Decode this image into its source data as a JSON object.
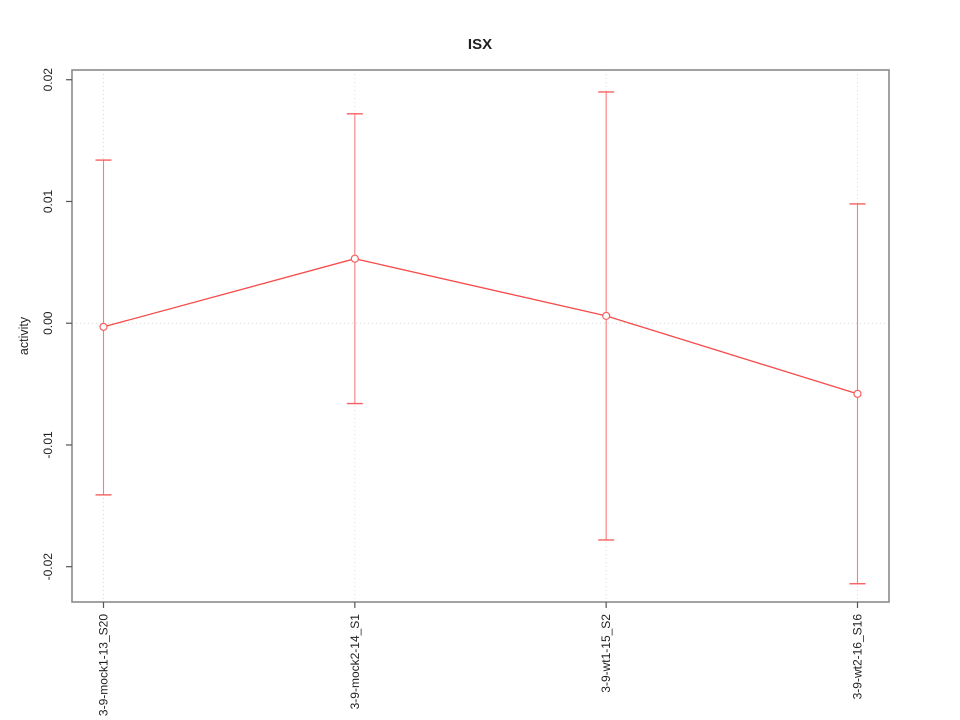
{
  "chart_data": {
    "type": "line",
    "title": "ISX",
    "ylabel": "activity",
    "categories": [
      "3-9-mock1-13_S20",
      "3-9-mock2-14_S1",
      "3-9-wt1-15_S2",
      "3-9-wt2-16_S16"
    ],
    "series": [
      {
        "name": "activity",
        "values": [
          -0.0003,
          0.0053,
          0.0006,
          -0.0058
        ],
        "error_upper": [
          0.0134,
          0.0172,
          0.019,
          0.0098
        ],
        "error_lower": [
          -0.0141,
          -0.0066,
          -0.0178,
          -0.0214
        ]
      }
    ],
    "y_ticks": [
      -0.02,
      -0.01,
      0.0,
      0.01,
      0.02
    ],
    "y_tick_labels": [
      "-0.02",
      "-0.01",
      "0.00",
      "0.01",
      "0.02"
    ],
    "ylim": [
      -0.0229,
      0.0208
    ],
    "grid": {
      "vertical_at_categories": true,
      "horizontal_at_zero": true,
      "style": "dotted"
    },
    "legend": "none",
    "marker": "open-circle",
    "colors": {
      "line": "#f74b4b",
      "error_bar": "#f87e7e",
      "error_cap": "#f76060",
      "marker_stroke": "#f76060",
      "marker_fill": "#ffffff",
      "grid": "#d8d8d8",
      "box": "#8a8a8a",
      "tick": "#555555",
      "text": "#1f1f1f"
    }
  }
}
